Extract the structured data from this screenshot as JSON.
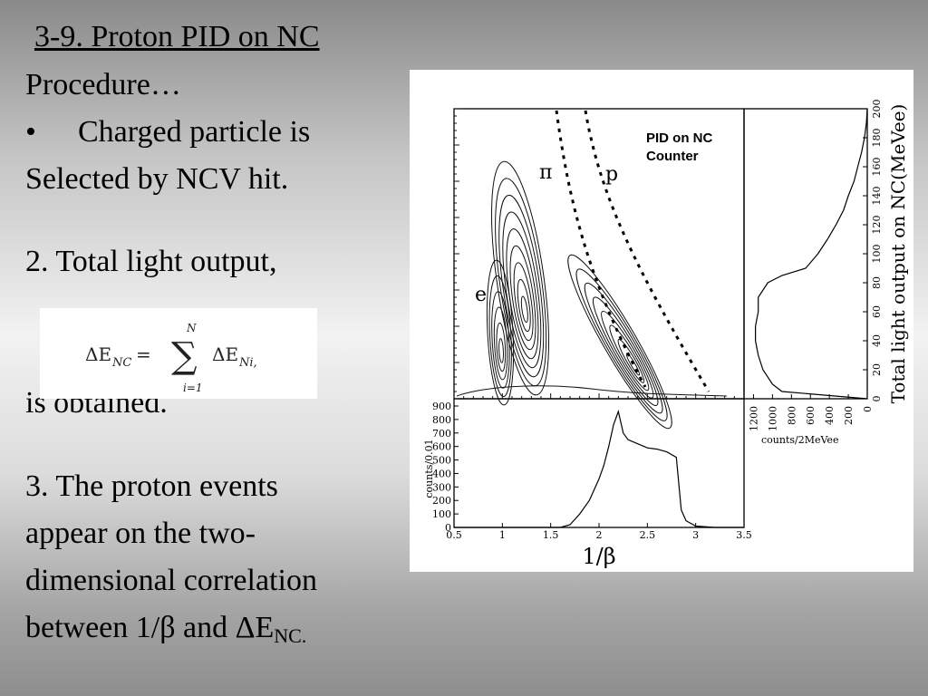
{
  "slide": {
    "title": "3-9.  Proton PID on NC",
    "procedure": "Procedure…",
    "bullet": "•",
    "bullet_text": "Charged particle is",
    "bullet_text2": "Selected by NCV hit.",
    "step2": "2. Total light output,",
    "step2_end": "is obtained.",
    "step3_lines": [
      "3. The proton events",
      "appear on the two-",
      "dimensional correlation"
    ],
    "step3_last_prefix": "between 1/β and ΔE",
    "step3_last_sub": "NC."
  },
  "formula": {
    "lhs": "ΔE",
    "lhs_sub": "NC",
    "equals": "=",
    "sum_top": "N",
    "sum_bottom": "i=1",
    "rhs": "ΔE",
    "rhs_sub": "Ni,"
  },
  "chart_data": [
    {
      "type": "heatmap",
      "description_labels": {
        "box_label_line1": "PID on NC",
        "box_label_line2": "Counter",
        "region_pi": "π",
        "region_p": "p",
        "region_e": "e"
      },
      "xlim": [
        0.5,
        3.5
      ],
      "ylim": [
        0,
        200
      ],
      "ylabel": "Total light output on NC(MeVee)"
    },
    {
      "type": "line",
      "xlabel": "1/β",
      "ylabel": "counts/0.01",
      "xlim": [
        0.5,
        3.5
      ],
      "ylim": [
        0,
        900
      ],
      "x_ticks": [
        "0.5",
        "1",
        "1.5",
        "2",
        "2.5",
        "3",
        "3.5"
      ],
      "y_ticks": [
        "0",
        "100",
        "200",
        "300",
        "400",
        "500",
        "600",
        "700",
        "800",
        "900"
      ],
      "x": [
        0.5,
        1.6,
        1.7,
        1.8,
        1.9,
        2.0,
        2.05,
        2.1,
        2.15,
        2.2,
        2.25,
        2.3,
        2.4,
        2.5,
        2.6,
        2.7,
        2.8,
        2.85,
        2.9,
        3.0,
        3.2,
        3.5
      ],
      "values": [
        0,
        0,
        20,
        100,
        200,
        360,
        460,
        600,
        760,
        860,
        700,
        650,
        620,
        590,
        580,
        560,
        520,
        130,
        50,
        10,
        0,
        0
      ]
    },
    {
      "type": "line",
      "orientation": "horizontal",
      "xlabel": "counts/2MeVee",
      "x_ticks": [
        "1200",
        "1000",
        "800",
        "600",
        "400",
        "200",
        "0"
      ],
      "y_ticks": [
        "0",
        "20",
        "40",
        "60",
        "80",
        "100",
        "120",
        "140",
        "160",
        "180",
        "200"
      ],
      "xlim": [
        1300,
        0
      ],
      "ylim": [
        0,
        200
      ],
      "y": [
        0,
        5,
        10,
        20,
        30,
        40,
        50,
        60,
        70,
        80,
        85,
        90,
        100,
        110,
        120,
        130,
        140,
        150,
        160,
        170,
        180,
        190,
        200
      ],
      "values": [
        0,
        900,
        1000,
        1100,
        1150,
        1180,
        1180,
        1150,
        1150,
        1050,
        900,
        650,
        520,
        420,
        330,
        250,
        200,
        140,
        100,
        60,
        30,
        10,
        0
      ]
    }
  ]
}
